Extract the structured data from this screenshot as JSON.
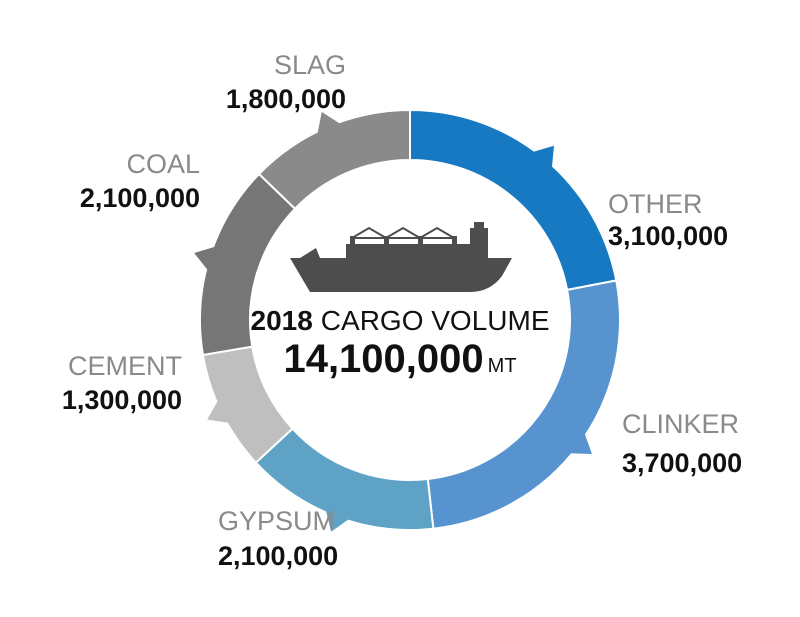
{
  "chart_data": {
    "type": "pie",
    "center": {
      "year": "2018",
      "title": "CARGO VOLUME",
      "total": "14,100,000",
      "unit": "MT"
    },
    "slices": [
      {
        "label": "OTHER",
        "value": 3100000,
        "display": "3,100,000",
        "color": "#1679c1"
      },
      {
        "label": "CLINKER",
        "value": 3700000,
        "display": "3,700,000",
        "color": "#5693cf"
      },
      {
        "label": "GYPSUM",
        "value": 2100000,
        "display": "2,100,000",
        "color": "#5ea3c6"
      },
      {
        "label": "CEMENT",
        "value": 1300000,
        "display": "1,300,000",
        "color": "#bfbfbf"
      },
      {
        "label": "COAL",
        "value": 2100000,
        "display": "2,100,000",
        "color": "#767676"
      },
      {
        "label": "SLAG",
        "value": 1800000,
        "display": "1,800,000",
        "color": "#8a8a8a"
      }
    ]
  }
}
